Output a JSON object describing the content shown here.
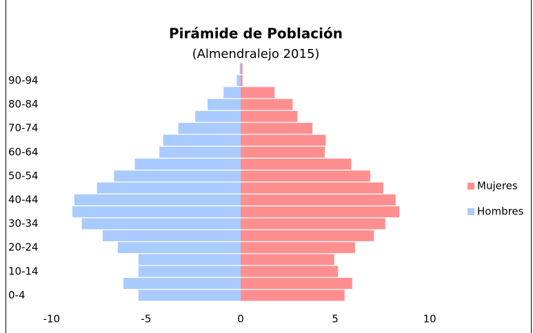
{
  "chart_data": {
    "type": "pyramid",
    "title": "Pirámide de Población",
    "subtitle": "(Almendralejo 2015)",
    "categories": [
      "0-4",
      null,
      "10-14",
      null,
      "20-24",
      null,
      "30-34",
      null,
      "40-44",
      null,
      "50-54",
      null,
      "60-64",
      null,
      "70-74",
      null,
      "80-84",
      null,
      "90-94",
      null
    ],
    "series": [
      {
        "name": "Mujeres",
        "color": "#ff8f8f",
        "values": [
          5.5,
          5.9,
          5.15,
          4.95,
          6.05,
          7.05,
          7.65,
          8.4,
          8.2,
          7.55,
          6.85,
          5.85,
          4.45,
          4.5,
          3.8,
          3.0,
          2.75,
          1.8,
          0.1,
          0.1
        ]
      },
      {
        "name": "Hombres",
        "color": "#a9cbff",
        "values": [
          -5.4,
          -6.2,
          -5.4,
          -5.4,
          -6.5,
          -7.3,
          -8.4,
          -8.9,
          -8.8,
          -7.6,
          -6.7,
          -5.6,
          -4.3,
          -4.1,
          -3.3,
          -2.4,
          -1.75,
          -0.9,
          -0.2,
          -0.05
        ]
      }
    ],
    "xlim": [
      -12,
      12
    ],
    "xticks": [
      -10,
      -5,
      0,
      5,
      10
    ],
    "grid": false,
    "legend": "right"
  }
}
